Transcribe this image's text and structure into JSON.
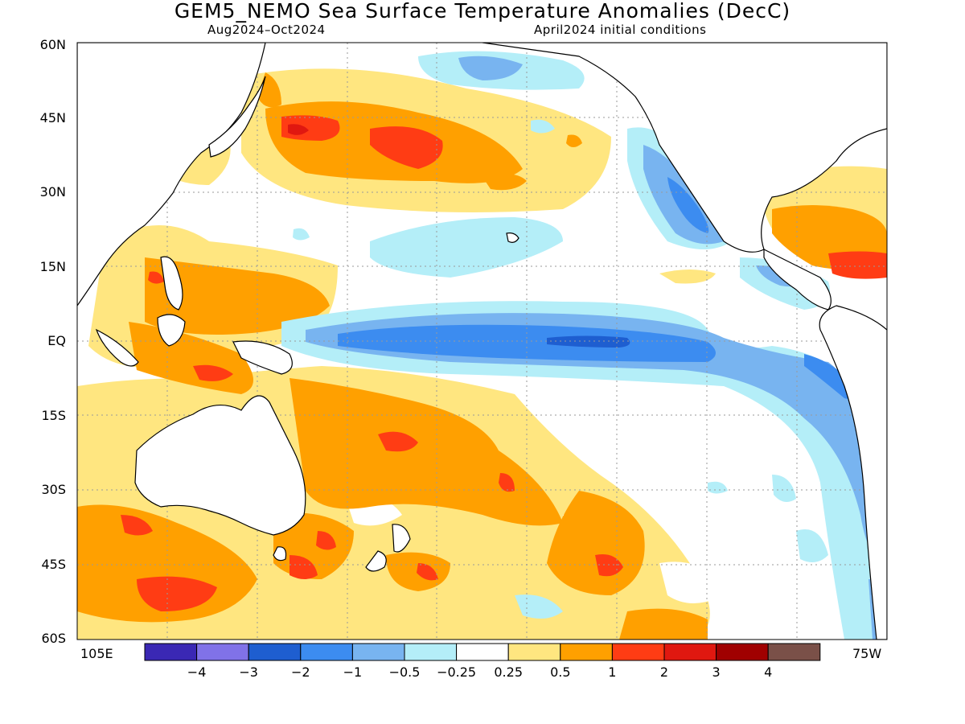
{
  "header": {
    "title": "GEM5_NEMO Sea Surface Temperature Anomalies (DecC)",
    "period": "Aug2024–Oct2024",
    "init": "April2024 initial conditions"
  },
  "axes": {
    "lat_labels": [
      "60N",
      "45N",
      "30N",
      "15N",
      "EQ",
      "15S",
      "30S",
      "45S",
      "60S"
    ],
    "lon_left": "105E",
    "lon_right": "75W"
  },
  "colorbar": {
    "labels": [
      "−4",
      "−3",
      "−2",
      "−1",
      "−0.5",
      "−0.25",
      "0.25",
      "0.5",
      "1",
      "2",
      "3",
      "4"
    ],
    "colors": [
      "#3a28b4",
      "#8072e8",
      "#1e5ed0",
      "#3c8cf0",
      "#78b4f0",
      "#b4eef8",
      "#ffffff",
      "#ffe680",
      "#ffa000",
      "#ff3c14",
      "#e01810",
      "#a00000",
      "#7a5048"
    ]
  },
  "palette": {
    "land_outline": "#000000",
    "grid": "#9a9a9a"
  }
}
